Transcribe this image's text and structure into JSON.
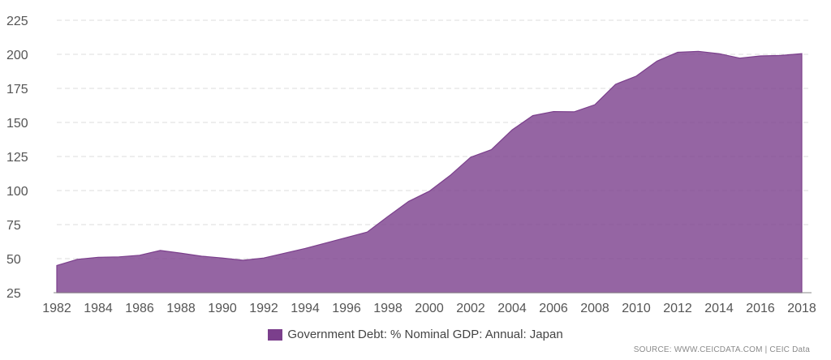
{
  "chart_data": {
    "type": "area",
    "x": [
      1982,
      1983,
      1984,
      1985,
      1986,
      1987,
      1988,
      1989,
      1990,
      1991,
      1992,
      1993,
      1994,
      1995,
      1996,
      1997,
      1998,
      1999,
      2000,
      2001,
      2002,
      2003,
      2004,
      2005,
      2006,
      2007,
      2008,
      2009,
      2010,
      2011,
      2012,
      2013,
      2014,
      2015,
      2016,
      2017,
      2018
    ],
    "series": [
      {
        "name": "Government Debt: % Nominal GDP: Annual: Japan",
        "values": [
          45.0,
          49.5,
          51.0,
          51.3,
          52.5,
          56.0,
          54.0,
          51.8,
          50.5,
          48.8,
          50.5,
          54.0,
          57.5,
          61.5,
          65.5,
          69.5,
          81.0,
          92.0,
          99.5,
          111.0,
          124.5,
          130.0,
          144.5,
          155.0,
          158.0,
          157.8,
          163.0,
          178.0,
          184.0,
          195.0,
          201.5,
          202.2,
          200.5,
          197.2,
          198.8,
          199.2,
          200.5
        ]
      }
    ],
    "xticks": [
      "1982",
      "1984",
      "1986",
      "1988",
      "1990",
      "1992",
      "1994",
      "1996",
      "1998",
      "2000",
      "2002",
      "2004",
      "2006",
      "2008",
      "2010",
      "2012",
      "2014",
      "2016",
      "2018"
    ],
    "yticks": [
      "25",
      "50",
      "75",
      "100",
      "125",
      "150",
      "175",
      "200",
      "225"
    ],
    "ylim": [
      25,
      225
    ],
    "xlim": [
      1982,
      2018
    ],
    "grid": "horizontal dashed",
    "legend_position": "bottom-center",
    "colors": {
      "area": "#7b3f8c",
      "grid": "#dddddd",
      "axis": "#888888"
    }
  },
  "legend": {
    "label": "Government Debt: % Nominal GDP: Annual: Japan"
  },
  "source": {
    "text": "SOURCE: WWW.CEICDATA.COM | CEIC Data"
  }
}
